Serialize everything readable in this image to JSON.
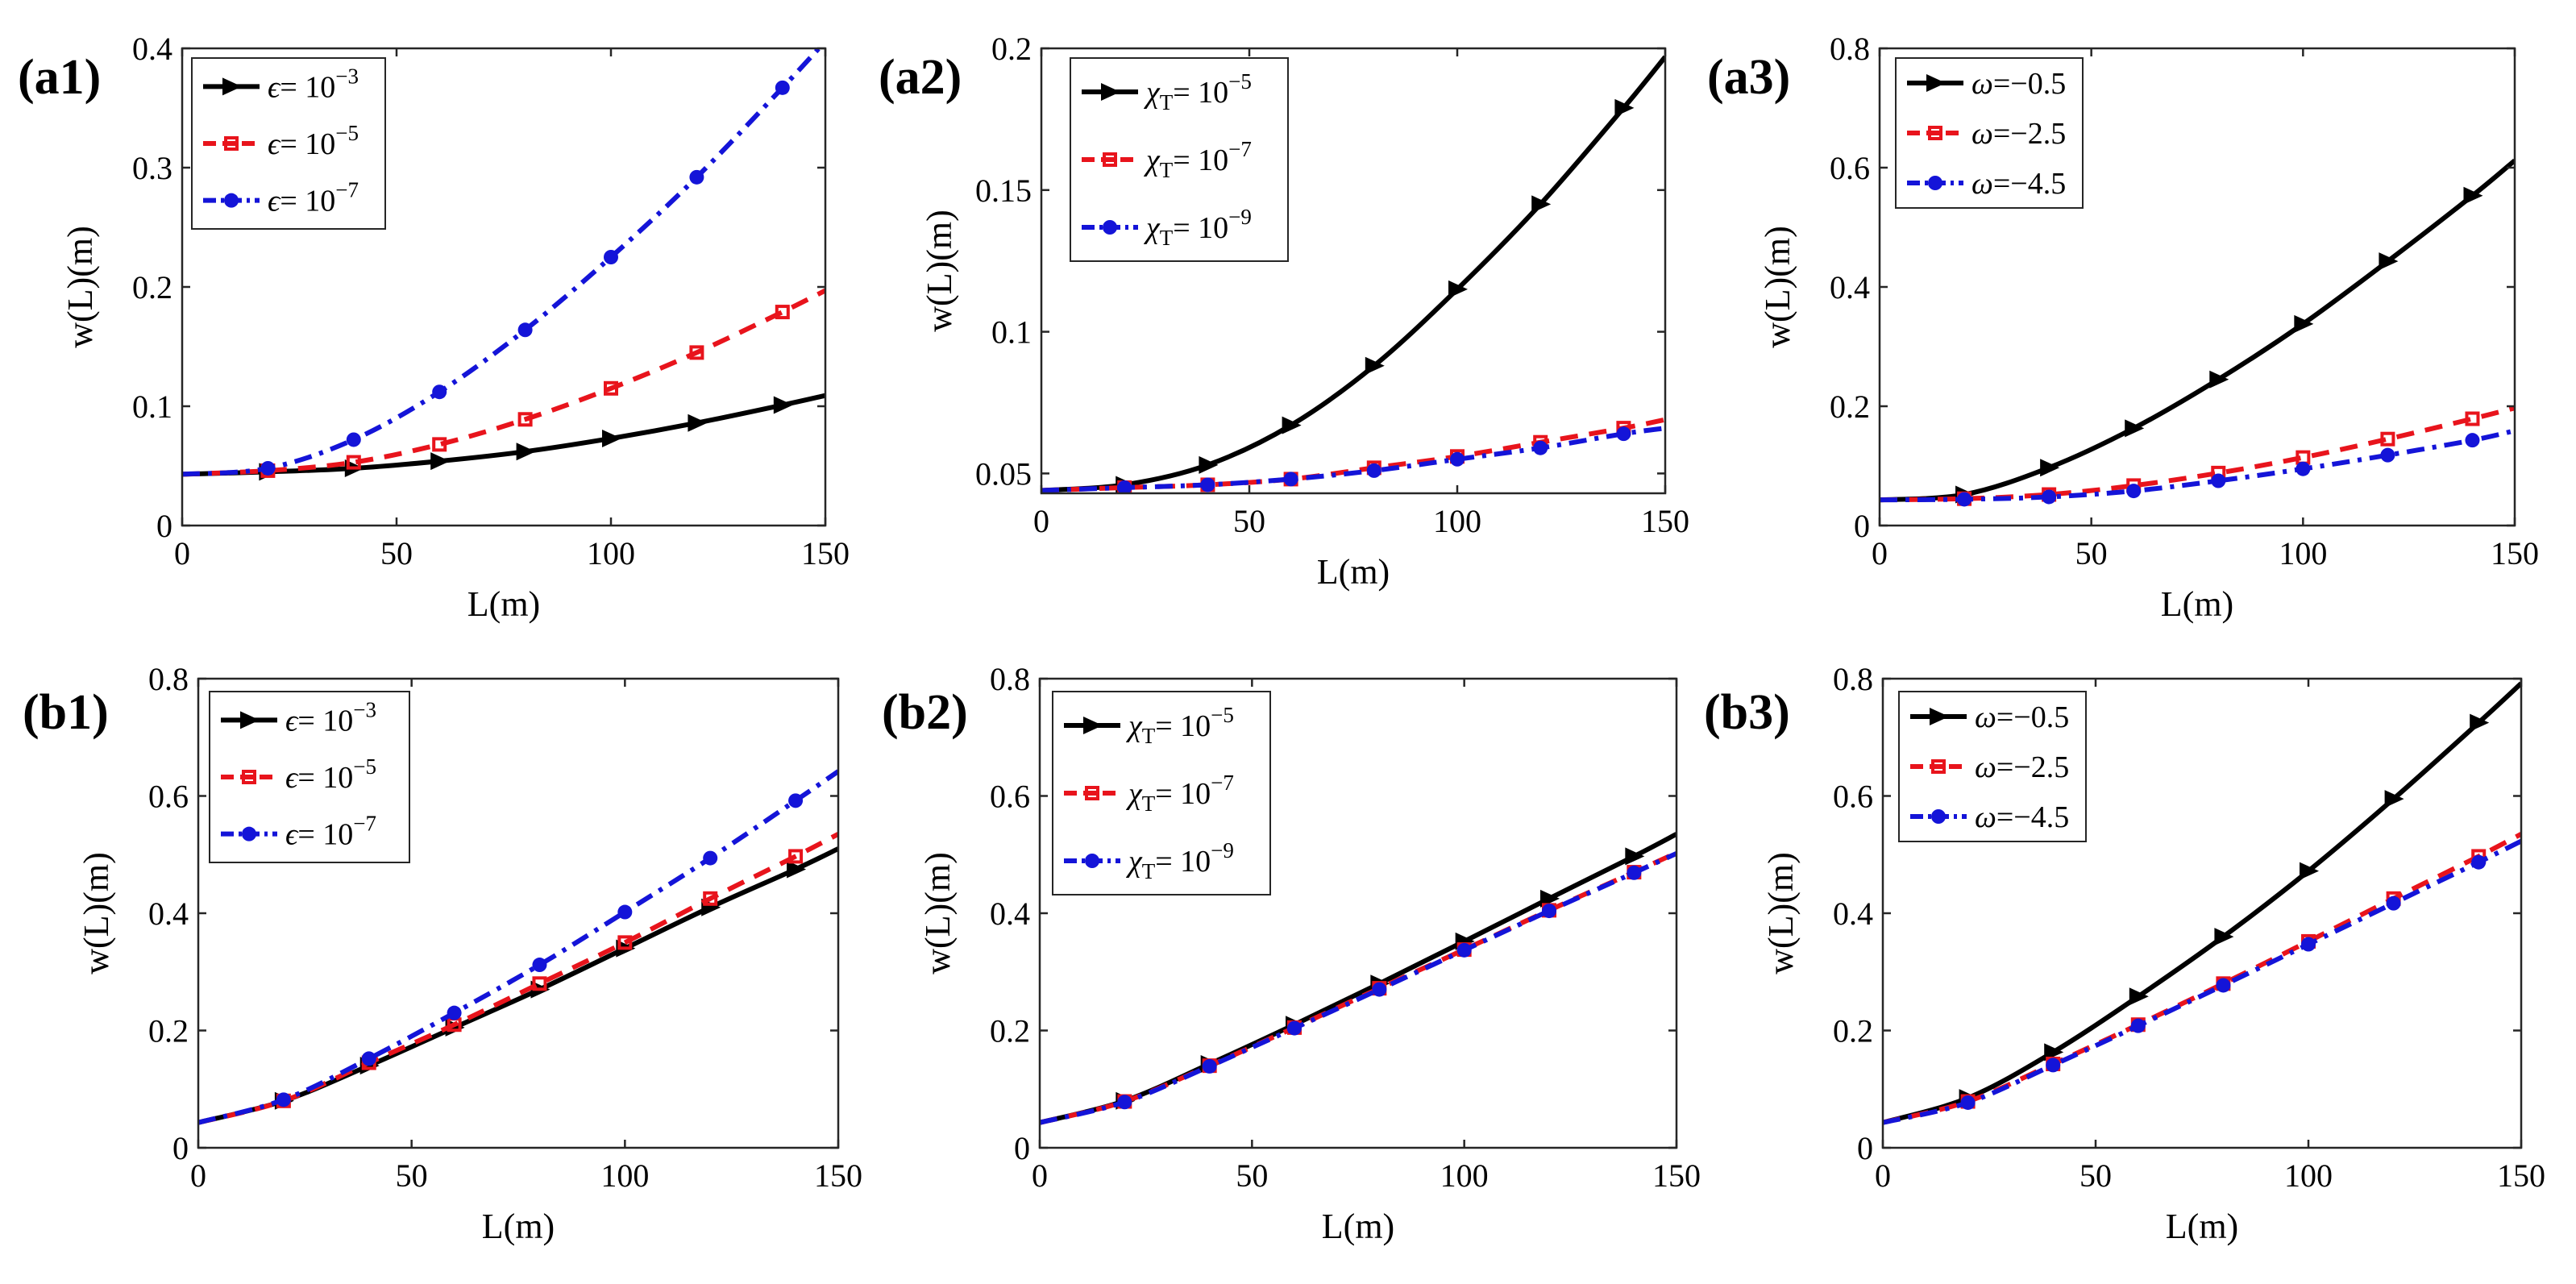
{
  "chart_data": [
    {
      "id": "a1",
      "panel_label": "(a1)",
      "type": "line",
      "xlabel": "L(m)",
      "ylabel": "w(L)(m)",
      "xlim": [
        0,
        150
      ],
      "ylim": [
        0,
        0.4
      ],
      "xticks": [
        0,
        50,
        100,
        150
      ],
      "yticks": [
        0,
        0.1,
        0.2,
        0.3,
        0.4
      ],
      "ytick_labels": [
        "0",
        "0.1",
        "0.2",
        "0.3",
        "0.4"
      ],
      "legend_position": "top-left",
      "grid": false,
      "series": [
        {
          "legend": {
            "sym": "ϵ",
            "sub": "",
            "rest": "= 10",
            "sup": "−3"
          },
          "color": "#000000",
          "marker": "triangle-right",
          "dash": "solid",
          "x": [
            0,
            20,
            40,
            60,
            80,
            100,
            120,
            140,
            150
          ],
          "y": [
            0.043,
            0.045,
            0.048,
            0.054,
            0.062,
            0.073,
            0.086,
            0.101,
            0.109
          ]
        },
        {
          "legend": {
            "sym": "ϵ",
            "sub": "",
            "rest": "= 10",
            "sup": "−5"
          },
          "color": "#e8141c",
          "marker": "square",
          "dash": "dashed",
          "x": [
            0,
            20,
            40,
            60,
            80,
            100,
            120,
            140,
            150
          ],
          "y": [
            0.043,
            0.046,
            0.053,
            0.068,
            0.089,
            0.115,
            0.145,
            0.179,
            0.197
          ]
        },
        {
          "legend": {
            "sym": "ϵ",
            "sub": "",
            "rest": "= 10",
            "sup": "−7"
          },
          "color": "#1414d8",
          "marker": "circle",
          "dash": "dashdot",
          "x": [
            0,
            20,
            40,
            60,
            80,
            100,
            120,
            140,
            150
          ],
          "y": [
            0.043,
            0.048,
            0.072,
            0.112,
            0.164,
            0.225,
            0.292,
            0.367,
            0.406
          ]
        }
      ]
    },
    {
      "id": "a2",
      "panel_label": "(a2)",
      "type": "line",
      "xlabel": "L(m)",
      "ylabel": "w(L)(m)",
      "xlim": [
        0,
        150
      ],
      "ylim": [
        0.043,
        0.2
      ],
      "xticks": [
        0,
        50,
        100,
        150
      ],
      "yticks": [
        0.05,
        0.1,
        0.15,
        0.2
      ],
      "ytick_labels": [
        "0.05",
        "0.1",
        "0.15",
        "0.2"
      ],
      "legend_position": "top-left",
      "grid": false,
      "series": [
        {
          "legend": {
            "sym": "χ",
            "sub": "T",
            "rest": "= 10",
            "sup": "−5"
          },
          "color": "#000000",
          "marker": "triangle-right",
          "dash": "solid",
          "x": [
            0,
            20,
            40,
            60,
            80,
            100,
            120,
            140,
            150
          ],
          "y": [
            0.044,
            0.046,
            0.053,
            0.067,
            0.088,
            0.115,
            0.145,
            0.179,
            0.197
          ]
        },
        {
          "legend": {
            "sym": "χ",
            "sub": "T",
            "rest": "= 10",
            "sup": "−7"
          },
          "color": "#e8141c",
          "marker": "square",
          "dash": "dashed",
          "x": [
            0,
            20,
            40,
            60,
            80,
            100,
            120,
            140,
            150
          ],
          "y": [
            0.044,
            0.045,
            0.046,
            0.048,
            0.052,
            0.056,
            0.061,
            0.066,
            0.069
          ]
        },
        {
          "legend": {
            "sym": "χ",
            "sub": "T",
            "rest": "= 10",
            "sup": "−9"
          },
          "color": "#1414d8",
          "marker": "circle",
          "dash": "dashdot",
          "x": [
            0,
            20,
            40,
            60,
            80,
            100,
            120,
            140,
            150
          ],
          "y": [
            0.044,
            0.045,
            0.046,
            0.048,
            0.051,
            0.055,
            0.059,
            0.064,
            0.066
          ]
        }
      ]
    },
    {
      "id": "a3",
      "panel_label": "(a3)",
      "type": "line",
      "xlabel": "L(m)",
      "ylabel": "w(L)(m)",
      "xlim": [
        0,
        150
      ],
      "ylim": [
        0,
        0.8
      ],
      "xticks": [
        0,
        50,
        100,
        150
      ],
      "yticks": [
        0,
        0.2,
        0.4,
        0.6,
        0.8
      ],
      "ytick_labels": [
        "0",
        "0.2",
        "0.4",
        "0.6",
        "0.8"
      ],
      "legend_position": "top-left",
      "grid": false,
      "series": [
        {
          "legend": {
            "sym": "ω",
            "sub": "",
            "rest": "=−0.5",
            "sup": ""
          },
          "color": "#000000",
          "marker": "triangle-right",
          "dash": "solid",
          "x": [
            0,
            20,
            40,
            60,
            80,
            100,
            120,
            140,
            150
          ],
          "y": [
            0.043,
            0.052,
            0.097,
            0.163,
            0.245,
            0.338,
            0.443,
            0.553,
            0.612
          ]
        },
        {
          "legend": {
            "sym": "ω",
            "sub": "",
            "rest": "=−2.5",
            "sup": ""
          },
          "color": "#e8141c",
          "marker": "square",
          "dash": "dashed",
          "x": [
            0,
            20,
            40,
            60,
            80,
            100,
            120,
            140,
            150
          ],
          "y": [
            0.043,
            0.045,
            0.052,
            0.067,
            0.088,
            0.114,
            0.145,
            0.179,
            0.197
          ]
        },
        {
          "legend": {
            "sym": "ω",
            "sub": "",
            "rest": "=−4.5",
            "sup": ""
          },
          "color": "#1414d8",
          "marker": "circle",
          "dash": "dashdot",
          "x": [
            0,
            20,
            40,
            60,
            80,
            100,
            120,
            140,
            150
          ],
          "y": [
            0.043,
            0.044,
            0.048,
            0.058,
            0.075,
            0.095,
            0.118,
            0.143,
            0.159
          ]
        }
      ]
    },
    {
      "id": "b1",
      "panel_label": "(b1)",
      "type": "line",
      "xlabel": "L(m)",
      "ylabel": "w(L)(m)",
      "xlim": [
        0,
        150
      ],
      "ylim": [
        0,
        0.8
      ],
      "xticks": [
        0,
        50,
        100,
        150
      ],
      "yticks": [
        0,
        0.2,
        0.4,
        0.6,
        0.8
      ],
      "ytick_labels": [
        "0",
        "0.2",
        "0.4",
        "0.6",
        "0.8"
      ],
      "legend_position": "top-left",
      "grid": false,
      "series": [
        {
          "legend": {
            "sym": "ϵ",
            "sub": "",
            "rest": "= 10",
            "sup": "−3"
          },
          "color": "#000000",
          "marker": "triangle-right",
          "dash": "solid",
          "x": [
            0,
            20,
            40,
            60,
            80,
            100,
            120,
            140,
            150
          ],
          "y": [
            0.043,
            0.08,
            0.14,
            0.205,
            0.27,
            0.34,
            0.41,
            0.475,
            0.51
          ]
        },
        {
          "legend": {
            "sym": "ϵ",
            "sub": "",
            "rest": "= 10",
            "sup": "−5"
          },
          "color": "#e8141c",
          "marker": "square",
          "dash": "dashed",
          "x": [
            0,
            20,
            40,
            60,
            80,
            100,
            120,
            140,
            150
          ],
          "y": [
            0.043,
            0.08,
            0.145,
            0.21,
            0.28,
            0.35,
            0.425,
            0.497,
            0.535
          ]
        },
        {
          "legend": {
            "sym": "ϵ",
            "sub": "",
            "rest": "= 10",
            "sup": "−7"
          },
          "color": "#1414d8",
          "marker": "circle",
          "dash": "dashdot",
          "x": [
            0,
            20,
            40,
            60,
            80,
            100,
            120,
            140,
            150
          ],
          "y": [
            0.043,
            0.082,
            0.152,
            0.23,
            0.312,
            0.402,
            0.494,
            0.592,
            0.642
          ]
        }
      ]
    },
    {
      "id": "b2",
      "panel_label": "(b2)",
      "type": "line",
      "xlabel": "L(m)",
      "ylabel": "w(L)(m)",
      "xlim": [
        0,
        150
      ],
      "ylim": [
        0,
        0.8
      ],
      "xticks": [
        0,
        50,
        100,
        150
      ],
      "yticks": [
        0,
        0.2,
        0.4,
        0.6,
        0.8
      ],
      "ytick_labels": [
        "0",
        "0.2",
        "0.4",
        "0.6",
        "0.8"
      ],
      "legend_position": "top-left",
      "grid": false,
      "series": [
        {
          "legend": {
            "sym": "χ",
            "sub": "T",
            "rest": "= 10",
            "sup": "−5"
          },
          "color": "#000000",
          "marker": "triangle-right",
          "dash": "solid",
          "x": [
            0,
            20,
            40,
            60,
            80,
            100,
            120,
            140,
            150
          ],
          "y": [
            0.043,
            0.08,
            0.143,
            0.21,
            0.28,
            0.352,
            0.425,
            0.497,
            0.535
          ]
        },
        {
          "legend": {
            "sym": "χ",
            "sub": "T",
            "rest": "= 10",
            "sup": "−7"
          },
          "color": "#e8141c",
          "marker": "square",
          "dash": "dashed",
          "x": [
            0,
            20,
            40,
            60,
            80,
            100,
            120,
            140,
            150
          ],
          "y": [
            0.043,
            0.079,
            0.14,
            0.205,
            0.272,
            0.338,
            0.405,
            0.47,
            0.503
          ]
        },
        {
          "legend": {
            "sym": "χ",
            "sub": "T",
            "rest": "= 10",
            "sup": "−9"
          },
          "color": "#1414d8",
          "marker": "circle",
          "dash": "dashdot",
          "x": [
            0,
            20,
            40,
            60,
            80,
            100,
            120,
            140,
            150
          ],
          "y": [
            0.043,
            0.078,
            0.139,
            0.204,
            0.27,
            0.337,
            0.404,
            0.469,
            0.502
          ]
        }
      ]
    },
    {
      "id": "b3",
      "panel_label": "(b3)",
      "type": "line",
      "xlabel": "L(m)",
      "ylabel": "w(L)(m)",
      "xlim": [
        0,
        150
      ],
      "ylim": [
        0,
        0.8
      ],
      "xticks": [
        0,
        50,
        100,
        150
      ],
      "yticks": [
        0,
        0.2,
        0.4,
        0.6,
        0.8
      ],
      "ytick_labels": [
        "0",
        "0.2",
        "0.4",
        "0.6",
        "0.8"
      ],
      "legend_position": "top-left",
      "grid": false,
      "series": [
        {
          "legend": {
            "sym": "ω",
            "sub": "",
            "rest": "=−0.5",
            "sup": ""
          },
          "color": "#000000",
          "marker": "triangle-right",
          "dash": "solid",
          "x": [
            0,
            20,
            40,
            60,
            80,
            100,
            120,
            140,
            150
          ],
          "y": [
            0.043,
            0.085,
            0.163,
            0.258,
            0.36,
            0.472,
            0.595,
            0.725,
            0.792
          ]
        },
        {
          "legend": {
            "sym": "ω",
            "sub": "",
            "rest": "=−2.5",
            "sup": ""
          },
          "color": "#e8141c",
          "marker": "square",
          "dash": "dashed",
          "x": [
            0,
            20,
            40,
            60,
            80,
            100,
            120,
            140,
            150
          ],
          "y": [
            0.043,
            0.079,
            0.143,
            0.21,
            0.28,
            0.352,
            0.425,
            0.497,
            0.535
          ]
        },
        {
          "legend": {
            "sym": "ω",
            "sub": "",
            "rest": "=−4.5",
            "sup": ""
          },
          "color": "#1414d8",
          "marker": "circle",
          "dash": "dashdot",
          "x": [
            0,
            20,
            40,
            60,
            80,
            100,
            120,
            140,
            150
          ],
          "y": [
            0.043,
            0.077,
            0.141,
            0.208,
            0.277,
            0.347,
            0.417,
            0.487,
            0.523
          ]
        }
      ]
    }
  ]
}
